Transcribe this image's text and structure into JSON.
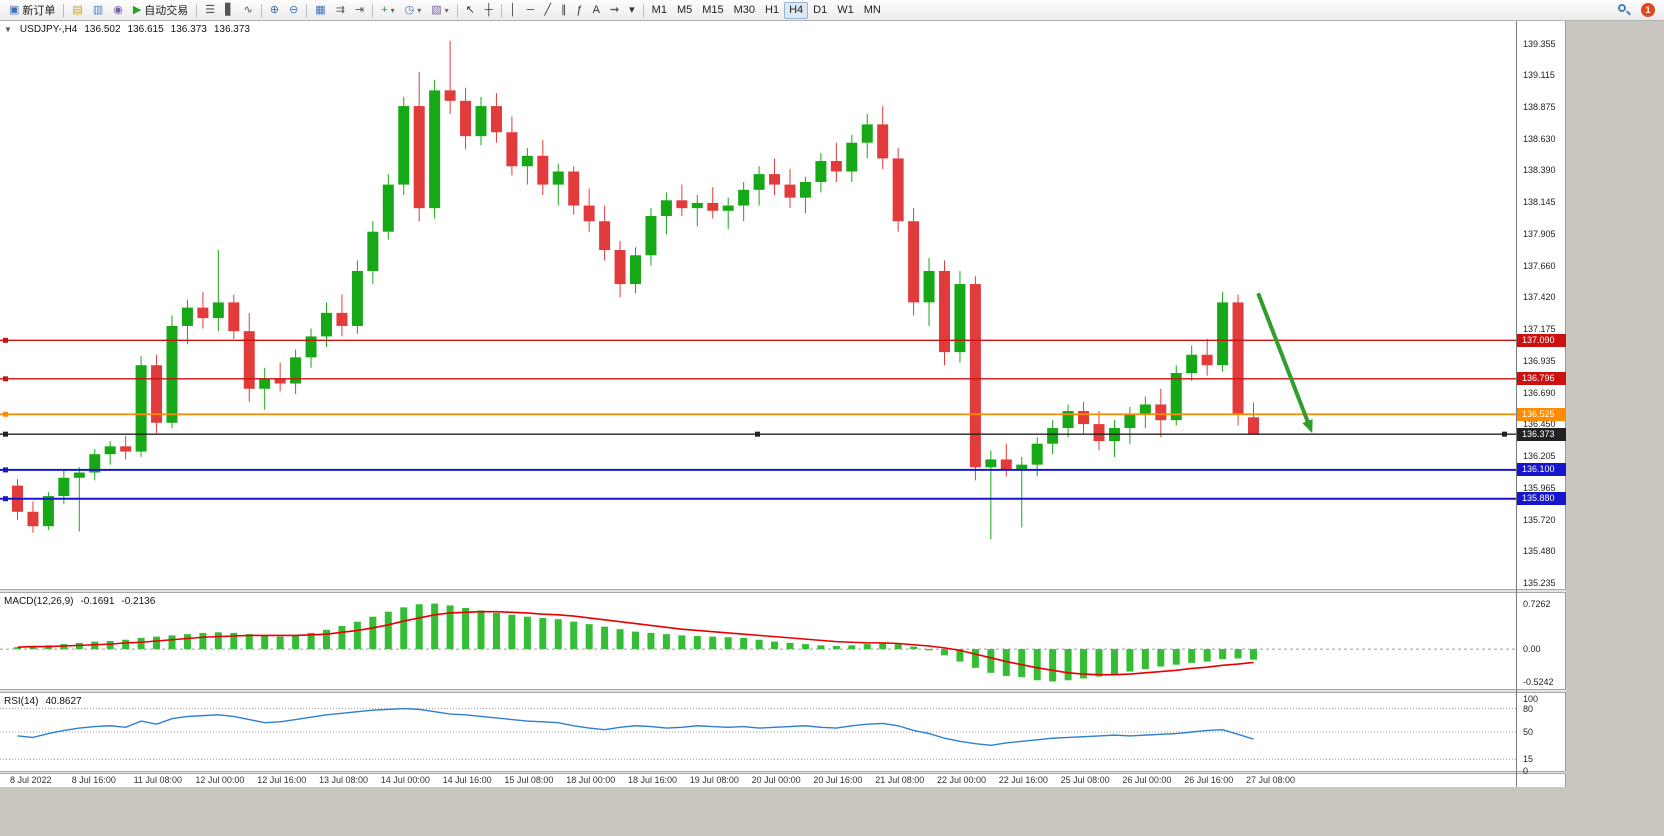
{
  "toolbar": {
    "groups": [
      {
        "items": [
          {
            "name": "new-order-button",
            "glyph": "▣",
            "glyph_color": "#3f6fb5",
            "label": "新订单"
          }
        ]
      },
      {
        "items": [
          {
            "name": "new-chart-button",
            "glyph": "▤",
            "glyph_color": "#c9a227"
          },
          {
            "name": "chart-profiles-button",
            "glyph": "▥",
            "glyph_color": "#4a7ebb"
          },
          {
            "name": "market-watch-button",
            "glyph": "◉",
            "glyph_color": "#7b5ea7"
          },
          {
            "name": "autotrading-button",
            "glyph": "▶",
            "glyph_color": "#27a027",
            "label": "自动交易"
          }
        ]
      },
      {
        "items": [
          {
            "name": "bar-chart-button",
            "glyph": "☰",
            "glyph_color": "#555555"
          },
          {
            "name": "candlestick-chart-button",
            "glyph": "▋",
            "glyph_color": "#555555"
          },
          {
            "name": "line-chart-button",
            "glyph": "∿",
            "glyph_color": "#555555"
          }
        ]
      },
      {
        "items": [
          {
            "name": "zoom-in-button",
            "glyph": "⊕",
            "glyph_color": "#3f6fb5"
          },
          {
            "name": "zoom-out-button",
            "glyph": "⊖",
            "glyph_color": "#3f6fb5"
          }
        ]
      },
      {
        "items": [
          {
            "name": "tile-windows-button",
            "glyph": "▦",
            "glyph_color": "#3f6fb5"
          },
          {
            "name": "auto-scroll-button",
            "glyph": "⇉",
            "glyph_color": "#555555"
          },
          {
            "name": "chart-shift-button",
            "glyph": "⇥",
            "glyph_color": "#555555"
          }
        ]
      },
      {
        "items": [
          {
            "name": "indicators-button",
            "glyph": "+",
            "glyph_color": "#1f9e1f",
            "caret": true
          },
          {
            "name": "periods-button",
            "glyph": "◷",
            "glyph_color": "#3f6fb5",
            "caret": true
          },
          {
            "name": "templates-button",
            "glyph": "▧",
            "glyph_color": "#7b5ea7",
            "caret": true
          }
        ]
      },
      {
        "items": [
          {
            "name": "cursor-button",
            "glyph": "↖",
            "glyph_color": "#333333"
          },
          {
            "name": "crosshair-button",
            "glyph": "┼",
            "glyph_color": "#333333"
          }
        ]
      },
      {
        "items": [
          {
            "name": "vertical-line-button",
            "glyph": "│",
            "glyph_color": "#333333"
          },
          {
            "name": "horizontal-line-button",
            "glyph": "─",
            "glyph_color": "#333333"
          },
          {
            "name": "trendline-button",
            "glyph": "╱",
            "glyph_color": "#333333"
          },
          {
            "name": "equidistant-channel-button",
            "glyph": "∥",
            "glyph_color": "#333333"
          },
          {
            "name": "fibonacci-button",
            "glyph": "ƒ",
            "glyph_color": "#333333"
          },
          {
            "name": "text-button",
            "glyph": "A",
            "glyph_color": "#333333"
          },
          {
            "name": "arrows-button",
            "glyph": "⇝",
            "glyph_color": "#333333"
          },
          {
            "name": "objects-dropdown-button",
            "glyph": "▾",
            "glyph_color": "#333333"
          }
        ]
      }
    ],
    "timeframes": {
      "items": [
        "M1",
        "M5",
        "M15",
        "M30",
        "H1",
        "H4",
        "D1",
        "W1",
        "MN"
      ],
      "active": "H4"
    },
    "notification_count": "1"
  },
  "chart": {
    "one_click_glyph": "▼",
    "title": {
      "symbol": "USDJPY-,H4",
      "open": "136.502",
      "high": "136.615",
      "low": "136.373",
      "close": "136.373"
    },
    "candle_up": "#17a817",
    "candle_down": "#e23b3b",
    "price_ticks": [
      "139.355",
      "139.115",
      "138.875",
      "138.630",
      "138.390",
      "138.145",
      "137.905",
      "137.660",
      "137.420",
      "137.175",
      "136.935",
      "136.690",
      "136.450",
      "136.205",
      "135.965",
      "135.720",
      "135.480",
      "135.235"
    ],
    "lines": [
      {
        "price": 137.09,
        "label": "137.090",
        "color": "#cc1111",
        "width": 1.4,
        "handles": [
          "left"
        ]
      },
      {
        "price": 136.796,
        "label": "136.796",
        "color": "#cc1111",
        "width": 1.4,
        "handles": [
          "left"
        ]
      },
      {
        "price": 136.525,
        "label": "136.525",
        "color": "#ff8c00",
        "width": 1.8,
        "handles": [
          "left"
        ]
      },
      {
        "price": 136.373,
        "label": "136.373",
        "color": "#222222",
        "width": 1.4,
        "handles": [
          "left",
          "center",
          "right"
        ]
      },
      {
        "price": 136.1,
        "label": "136.100",
        "color": "#1616cc",
        "width": 2,
        "handles": [
          "left"
        ]
      },
      {
        "price": 135.88,
        "label": "135.880",
        "color": "#1616cc",
        "width": 2,
        "handles": [
          "left"
        ]
      }
    ],
    "arrow": {
      "i1": 80.3,
      "p1": 137.45,
      "i2": 83.8,
      "p2": 136.38,
      "color": "#2f9e2f",
      "width": 4
    }
  },
  "macd": {
    "name": "MACD(12,26,9)",
    "value_main": "-0.1691",
    "value_signal": "-0.2136",
    "axis_labels": [
      "0.7262",
      "0.00",
      "-0.5242"
    ]
  },
  "rsi": {
    "name": "RSI(14)",
    "value": "40.8627",
    "axis_labels": [
      "100",
      "80",
      "50",
      "15",
      "0"
    ]
  },
  "chart_data": [
    {
      "type": "candlestick",
      "title": "USDJPY- H4",
      "ylim": [
        135.19,
        139.53
      ],
      "x_labels": [
        "8 Jul 2022",
        "8 Jul 16:00",
        "11 Jul 08:00",
        "12 Jul 00:00",
        "12 Jul 16:00",
        "13 Jul 08:00",
        "14 Jul 00:00",
        "14 Jul 16:00",
        "15 Jul 08:00",
        "18 Jul 00:00",
        "18 Jul 16:00",
        "19 Jul 08:00",
        "20 Jul 00:00",
        "20 Jul 16:00",
        "21 Jul 08:00",
        "22 Jul 00:00",
        "22 Jul 16:00",
        "25 Jul 08:00",
        "26 Jul 00:00",
        "26 Jul 16:00",
        "27 Jul 08:00"
      ],
      "x_label_indices": [
        0,
        4,
        8,
        12,
        16,
        20,
        24,
        28,
        32,
        36,
        40,
        44,
        48,
        52,
        56,
        60,
        64,
        68,
        72,
        76,
        80
      ],
      "ohlc": [
        [
          135.98,
          136.03,
          135.72,
          135.78
        ],
        [
          135.78,
          135.86,
          135.62,
          135.67
        ],
        [
          135.67,
          135.93,
          135.64,
          135.9
        ],
        [
          135.9,
          136.1,
          135.84,
          136.04
        ],
        [
          136.04,
          136.12,
          135.63,
          136.08
        ],
        [
          136.08,
          136.26,
          136.02,
          136.22
        ],
        [
          136.22,
          136.32,
          136.14,
          136.28
        ],
        [
          136.28,
          136.36,
          136.18,
          136.24
        ],
        [
          136.24,
          136.97,
          136.2,
          136.9
        ],
        [
          136.9,
          136.98,
          136.38,
          136.46
        ],
        [
          136.46,
          137.28,
          136.42,
          137.2
        ],
        [
          137.2,
          137.4,
          137.06,
          137.34
        ],
        [
          137.34,
          137.46,
          137.18,
          137.26
        ],
        [
          137.26,
          137.78,
          137.16,
          137.38
        ],
        [
          137.38,
          137.44,
          137.1,
          137.16
        ],
        [
          137.16,
          137.3,
          136.62,
          136.72
        ],
        [
          136.72,
          136.88,
          136.56,
          136.8
        ],
        [
          136.8,
          136.92,
          136.7,
          136.76
        ],
        [
          136.76,
          137.02,
          136.68,
          136.96
        ],
        [
          136.96,
          137.18,
          136.88,
          137.12
        ],
        [
          137.12,
          137.38,
          137.04,
          137.3
        ],
        [
          137.3,
          137.44,
          137.12,
          137.2
        ],
        [
          137.2,
          137.7,
          137.14,
          137.62
        ],
        [
          137.62,
          138.0,
          137.52,
          137.92
        ],
        [
          137.92,
          138.36,
          137.86,
          138.28
        ],
        [
          138.28,
          138.95,
          138.2,
          138.88
        ],
        [
          138.88,
          139.14,
          138.0,
          138.1
        ],
        [
          138.1,
          139.08,
          138.02,
          139.0
        ],
        [
          139.0,
          139.38,
          138.82,
          138.92
        ],
        [
          138.92,
          139.02,
          138.55,
          138.65
        ],
        [
          138.65,
          138.95,
          138.58,
          138.88
        ],
        [
          138.88,
          138.98,
          138.6,
          138.68
        ],
        [
          138.68,
          138.8,
          138.35,
          138.42
        ],
        [
          138.42,
          138.56,
          138.28,
          138.5
        ],
        [
          138.5,
          138.62,
          138.2,
          138.28
        ],
        [
          138.28,
          138.44,
          138.12,
          138.38
        ],
        [
          138.38,
          138.42,
          138.05,
          138.12
        ],
        [
          138.12,
          138.25,
          137.92,
          138.0
        ],
        [
          138.0,
          138.12,
          137.7,
          137.78
        ],
        [
          137.78,
          137.85,
          137.42,
          137.52
        ],
        [
          137.52,
          137.8,
          137.45,
          137.74
        ],
        [
          137.74,
          138.1,
          137.66,
          138.04
        ],
        [
          138.04,
          138.22,
          137.9,
          138.16
        ],
        [
          138.16,
          138.28,
          138.04,
          138.1
        ],
        [
          138.1,
          138.2,
          137.96,
          138.14
        ],
        [
          138.14,
          138.26,
          138.02,
          138.08
        ],
        [
          138.08,
          138.18,
          137.94,
          138.12
        ],
        [
          138.12,
          138.3,
          138.0,
          138.24
        ],
        [
          138.24,
          138.42,
          138.12,
          138.36
        ],
        [
          138.36,
          138.48,
          138.2,
          138.28
        ],
        [
          138.28,
          138.4,
          138.1,
          138.18
        ],
        [
          138.18,
          138.34,
          138.06,
          138.3
        ],
        [
          138.3,
          138.52,
          138.22,
          138.46
        ],
        [
          138.46,
          138.6,
          138.3,
          138.38
        ],
        [
          138.38,
          138.66,
          138.3,
          138.6
        ],
        [
          138.6,
          138.82,
          138.48,
          138.74
        ],
        [
          138.74,
          138.88,
          138.4,
          138.48
        ],
        [
          138.48,
          138.56,
          137.92,
          138.0
        ],
        [
          138.0,
          138.1,
          137.28,
          137.38
        ],
        [
          137.38,
          137.72,
          137.2,
          137.62
        ],
        [
          137.62,
          137.7,
          136.9,
          137.0
        ],
        [
          137.0,
          137.62,
          136.92,
          137.52
        ],
        [
          137.52,
          137.58,
          136.02,
          136.12
        ],
        [
          136.12,
          136.25,
          135.57,
          136.18
        ],
        [
          136.18,
          136.3,
          136.05,
          136.1
        ],
        [
          136.1,
          136.2,
          135.66,
          136.14
        ],
        [
          136.14,
          136.35,
          136.05,
          136.3
        ],
        [
          136.3,
          136.48,
          136.22,
          136.42
        ],
        [
          136.42,
          136.6,
          136.35,
          136.55
        ],
        [
          136.55,
          136.62,
          136.38,
          136.45
        ],
        [
          136.45,
          136.55,
          136.25,
          136.32
        ],
        [
          136.32,
          136.48,
          136.2,
          136.42
        ],
        [
          136.42,
          136.58,
          136.3,
          136.52
        ],
        [
          136.52,
          136.66,
          136.42,
          136.6
        ],
        [
          136.6,
          136.72,
          136.35,
          136.48
        ],
        [
          136.48,
          136.9,
          136.44,
          136.84
        ],
        [
          136.84,
          137.05,
          136.78,
          136.98
        ],
        [
          136.98,
          137.1,
          136.82,
          136.9
        ],
        [
          136.9,
          137.46,
          136.85,
          137.38
        ],
        [
          137.38,
          137.44,
          136.44,
          136.52
        ],
        [
          136.502,
          136.615,
          136.373,
          136.373
        ]
      ]
    },
    {
      "type": "bar",
      "title": "MACD(12,26,9)",
      "ylim": [
        -0.64,
        0.9
      ],
      "histogram_color": "#35bd35",
      "signal_color": "#e80000",
      "series": [
        {
          "name": "MACD",
          "values": [
            0.03,
            0.05,
            0.06,
            0.08,
            0.1,
            0.12,
            0.13,
            0.15,
            0.18,
            0.2,
            0.22,
            0.24,
            0.26,
            0.27,
            0.26,
            0.24,
            0.22,
            0.2,
            0.22,
            0.26,
            0.31,
            0.37,
            0.44,
            0.52,
            0.6,
            0.67,
            0.72,
            0.73,
            0.7,
            0.66,
            0.62,
            0.58,
            0.55,
            0.52,
            0.5,
            0.48,
            0.44,
            0.4,
            0.36,
            0.32,
            0.28,
            0.26,
            0.24,
            0.22,
            0.21,
            0.2,
            0.19,
            0.18,
            0.15,
            0.12,
            0.1,
            0.08,
            0.06,
            0.05,
            0.06,
            0.08,
            0.09,
            0.08,
            0.04,
            -0.02,
            -0.1,
            -0.2,
            -0.3,
            -0.38,
            -0.43,
            -0.45,
            -0.5,
            -0.52,
            -0.5,
            -0.47,
            -0.44,
            -0.4,
            -0.36,
            -0.32,
            -0.28,
            -0.25,
            -0.22,
            -0.2,
            -0.16,
            -0.15,
            -0.1691
          ]
        },
        {
          "name": "Signal",
          "values": [
            0.03,
            0.04,
            0.04,
            0.05,
            0.06,
            0.07,
            0.08,
            0.1,
            0.11,
            0.13,
            0.15,
            0.17,
            0.19,
            0.2,
            0.21,
            0.22,
            0.22,
            0.22,
            0.22,
            0.23,
            0.24,
            0.27,
            0.3,
            0.34,
            0.39,
            0.45,
            0.5,
            0.55,
            0.58,
            0.59,
            0.6,
            0.6,
            0.59,
            0.58,
            0.56,
            0.55,
            0.53,
            0.5,
            0.47,
            0.44,
            0.41,
            0.38,
            0.35,
            0.32,
            0.3,
            0.28,
            0.26,
            0.24,
            0.22,
            0.2,
            0.18,
            0.16,
            0.14,
            0.12,
            0.11,
            0.1,
            0.1,
            0.09,
            0.07,
            0.05,
            0.02,
            -0.02,
            -0.08,
            -0.14,
            -0.2,
            -0.25,
            -0.3,
            -0.34,
            -0.38,
            -0.4,
            -0.41,
            -0.41,
            -0.4,
            -0.38,
            -0.36,
            -0.34,
            -0.31,
            -0.29,
            -0.26,
            -0.24,
            -0.2136
          ]
        }
      ]
    },
    {
      "type": "line",
      "title": "RSI(14)",
      "ylim": [
        0,
        100
      ],
      "color": "#2e7fd0",
      "levels": [
        80,
        50,
        15
      ],
      "values": [
        45,
        43,
        48,
        52,
        55,
        57,
        58,
        56,
        64,
        60,
        67,
        70,
        71,
        72,
        70,
        66,
        62,
        63,
        66,
        69,
        72,
        74,
        76,
        78,
        79,
        80,
        79,
        76,
        73,
        72,
        70,
        68,
        66,
        64,
        63,
        62,
        58,
        55,
        53,
        56,
        58,
        57,
        55,
        56,
        58,
        57,
        56,
        57,
        55,
        56,
        57,
        58,
        56,
        55,
        58,
        60,
        61,
        58,
        52,
        48,
        42,
        38,
        35,
        33,
        36,
        38,
        40,
        42,
        43,
        44,
        45,
        46,
        45,
        46,
        47,
        48,
        50,
        52,
        53,
        47,
        40.8627
      ]
    }
  ]
}
